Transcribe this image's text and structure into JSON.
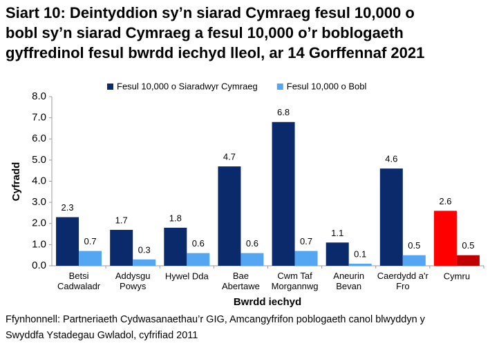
{
  "chart_data": {
    "type": "bar",
    "title": "Siart 10: Deintyddion sy’n siarad Cymraeg fesul 10,000 o\nbobl sy’n siarad Cymraeg a fesul 10,000 o’r boblogaeth\ngyffredinol fesul bwrdd iechyd lleol, ar 14 Gorffennaf 2021",
    "categories": [
      "Betsi\nCadwaladr",
      "Addysgu\nPowys",
      "Hywel Dda",
      "Bae\nAbertawe",
      "Cwm Taf\nMorgannwg",
      "Aneurin\nBevan",
      "Caerdydd a'r\nFro",
      "Cymru"
    ],
    "series": [
      {
        "name": "Fesul 10,000 o Siaradwyr Cymraeg",
        "color": "#0b2a6b",
        "colors": [
          "#0b2a6b",
          "#0b2a6b",
          "#0b2a6b",
          "#0b2a6b",
          "#0b2a6b",
          "#0b2a6b",
          "#0b2a6b",
          "#ff0000"
        ],
        "values": [
          2.3,
          1.7,
          1.8,
          4.7,
          6.8,
          1.1,
          4.6,
          2.6
        ]
      },
      {
        "name": "Fesul 10,000 o Bobl",
        "color": "#55a6f2",
        "colors": [
          "#55a6f2",
          "#55a6f2",
          "#55a6f2",
          "#55a6f2",
          "#55a6f2",
          "#55a6f2",
          "#55a6f2",
          "#c00000"
        ],
        "values": [
          0.7,
          0.3,
          0.6,
          0.6,
          0.7,
          0.1,
          0.5,
          0.5
        ]
      }
    ],
    "ylim": [
      0,
      8
    ],
    "yticks": [
      {
        "value": 0,
        "label": "0.0"
      },
      {
        "value": 1,
        "label": "1.0"
      },
      {
        "value": 2,
        "label": "2.0"
      },
      {
        "value": 3,
        "label": "3.0"
      },
      {
        "value": 4,
        "label": "4.0"
      },
      {
        "value": 5,
        "label": "5.0"
      },
      {
        "value": 6,
        "label": "6.0"
      },
      {
        "value": 7,
        "label": "7.0"
      },
      {
        "value": 8,
        "label": "8.0"
      }
    ],
    "y_label": "Cyfradd",
    "x_label": "Bwrdd iechyd",
    "legend": "top",
    "source": "Ffynhonnell: Partneriaeth Cydwasanaethau’r GIG, Amcangyfrifon poblogaeth canol blwyddyn y\nSwyddfa Ystadegau Gwladol, cyfrifiad 2011"
  }
}
